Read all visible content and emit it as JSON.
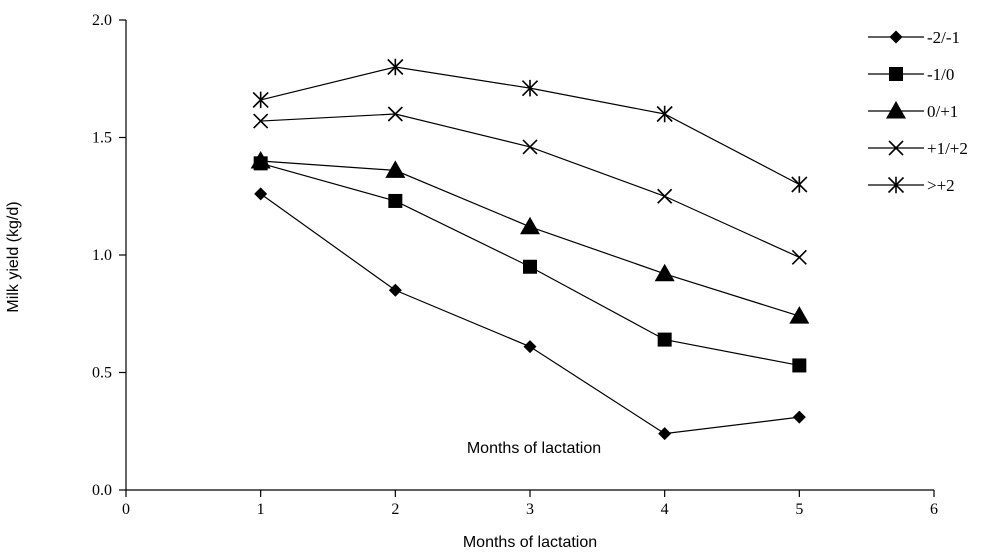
{
  "chart_data": {
    "type": "line",
    "xlabel": "Months of lactation",
    "ylabel": "Milk yield (kg/d)",
    "annotation": "Months of lactation",
    "xlim": [
      0,
      6
    ],
    "ylim": [
      0,
      2
    ],
    "xticks": [
      0,
      1,
      2,
      3,
      4,
      5,
      6
    ],
    "xtick_labels": [
      "0",
      "1",
      "2",
      "3",
      "4",
      "5",
      "6"
    ],
    "yticks": [
      0,
      0.5,
      1,
      1.5,
      2
    ],
    "ytick_labels": [
      "0.0",
      "0.5",
      "1.0",
      "1.5",
      "2.0"
    ],
    "grid": false,
    "legend_position": "top-right",
    "x": [
      1,
      2,
      3,
      4,
      5
    ],
    "series": [
      {
        "name": "-2/-1",
        "marker": "diamond",
        "values": [
          1.26,
          0.85,
          0.61,
          0.24,
          0.31
        ]
      },
      {
        "name": "-1/0",
        "marker": "square",
        "values": [
          1.39,
          1.23,
          0.95,
          0.64,
          0.53
        ]
      },
      {
        "name": "0/+1",
        "marker": "triangle",
        "values": [
          1.4,
          1.36,
          1.12,
          0.92,
          0.74
        ]
      },
      {
        "name": "+1/+2",
        "marker": "x",
        "values": [
          1.57,
          1.6,
          1.46,
          1.25,
          0.99
        ]
      },
      {
        "name": ">+2",
        "marker": "star",
        "values": [
          1.66,
          1.8,
          1.71,
          1.6,
          1.3
        ]
      }
    ]
  }
}
